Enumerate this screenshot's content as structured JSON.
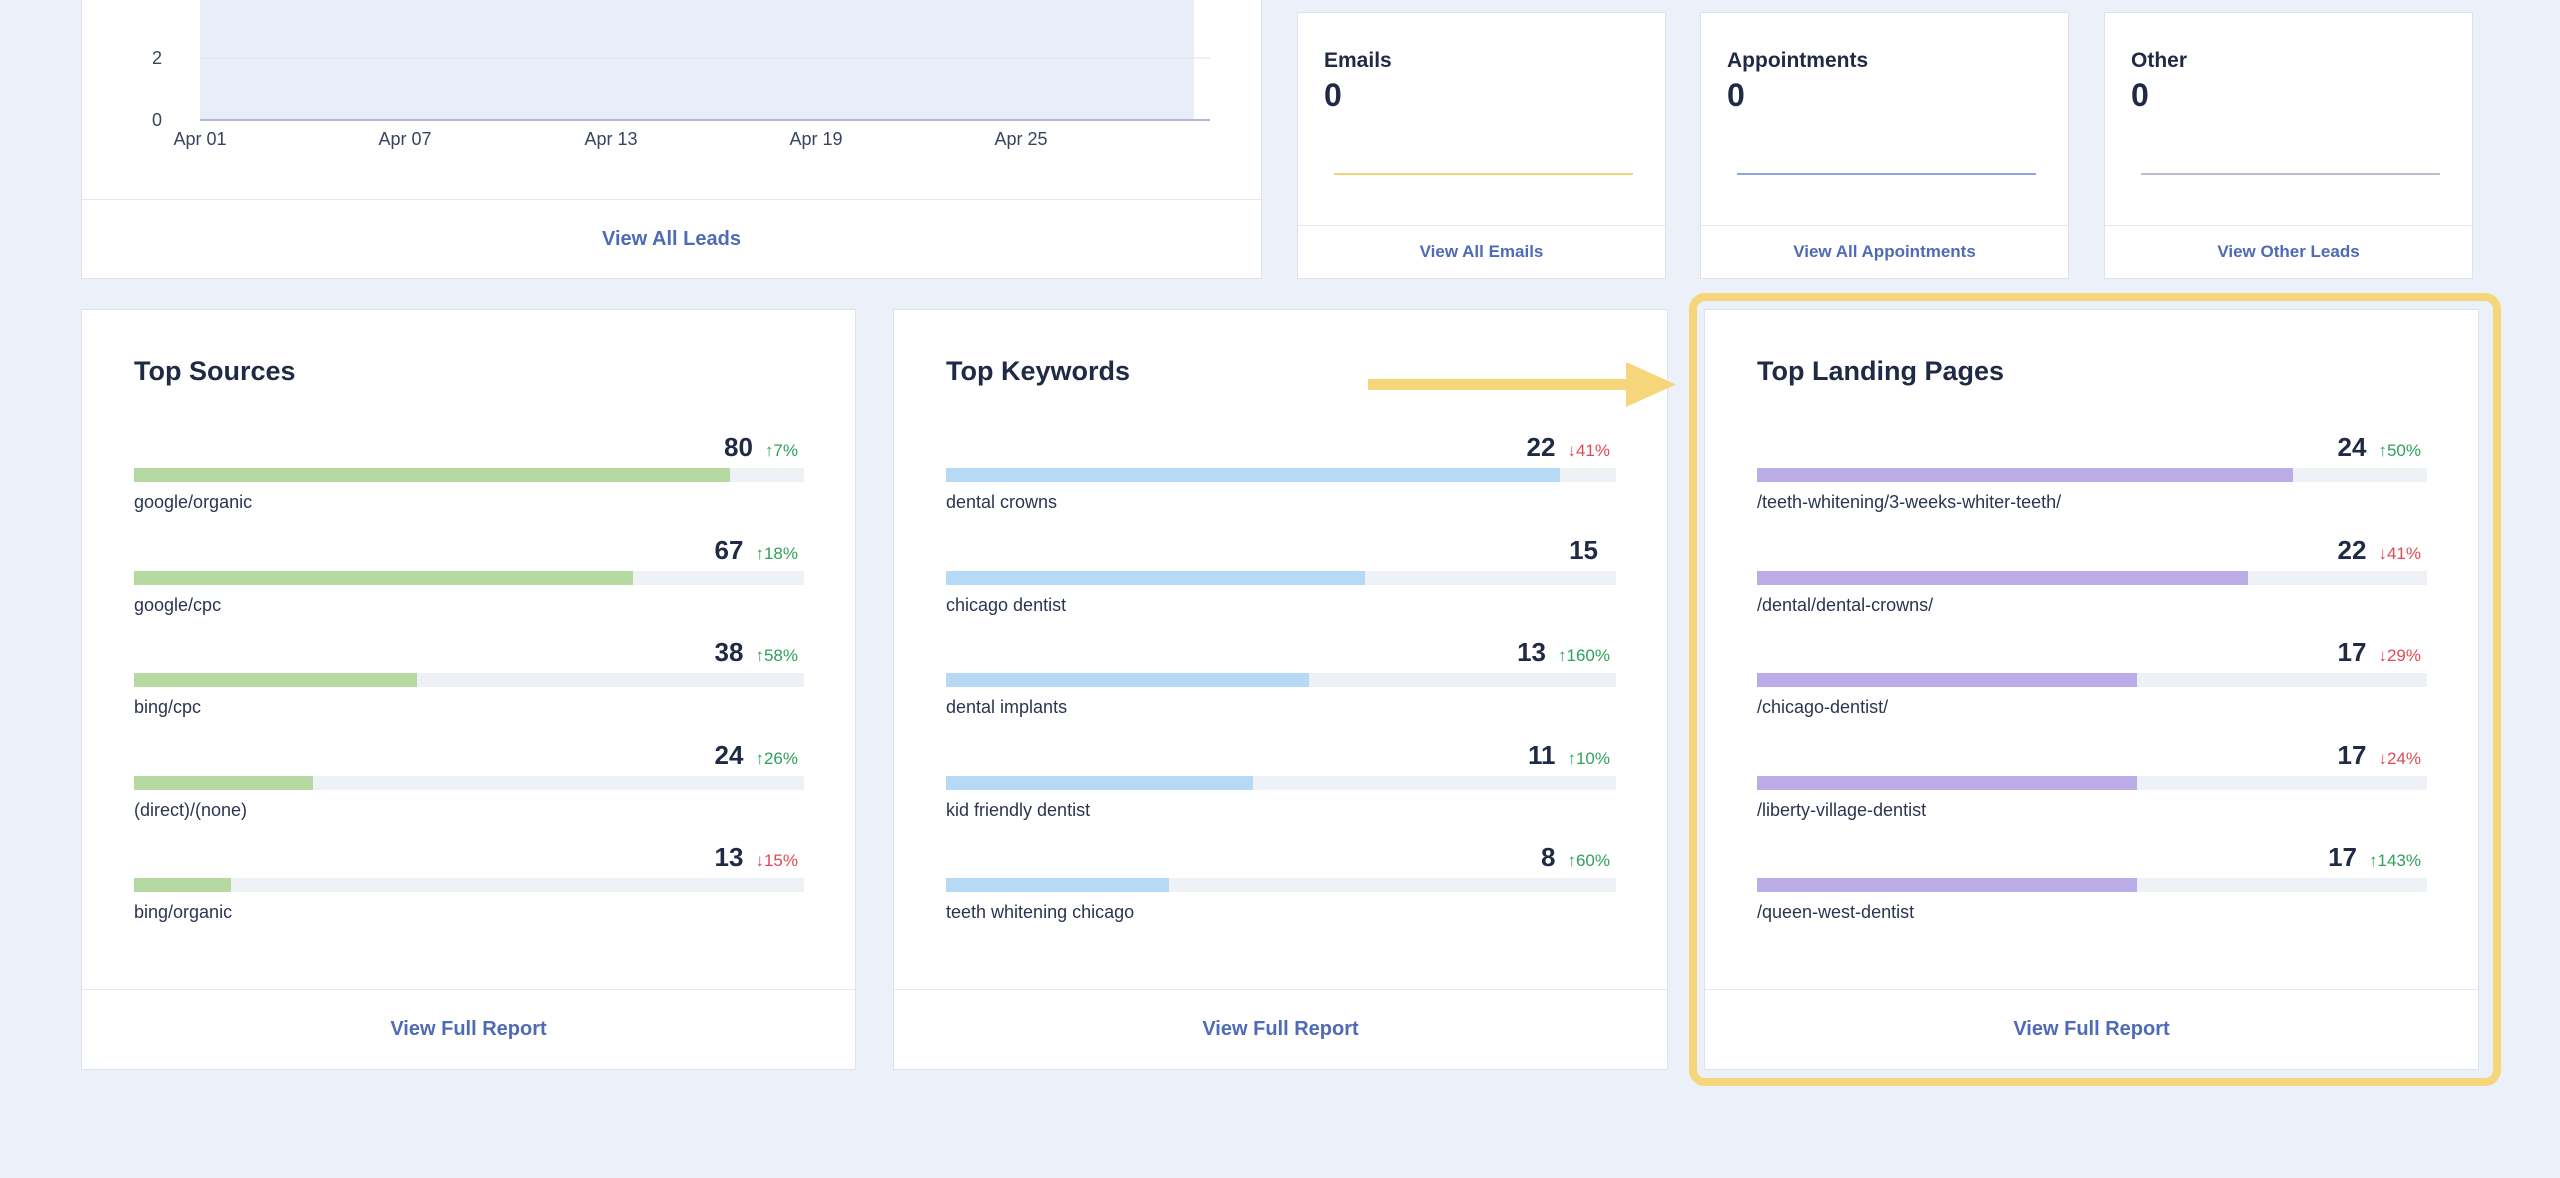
{
  "leads_chart": {
    "y_ticks": [
      "0",
      "2"
    ],
    "x_ticks": [
      "Apr 01",
      "Apr 07",
      "Apr 13",
      "Apr 19",
      "Apr 25"
    ],
    "footer_link": "View All Leads"
  },
  "mini_cards": [
    {
      "title": "Emails",
      "value": "0",
      "link": "View All Emails",
      "line_color": "#f6d27a"
    },
    {
      "title": "Appointments",
      "value": "0",
      "link": "View All Appointments",
      "line_color": "#8ea6dd"
    },
    {
      "title": "Other",
      "value": "0",
      "link": "View Other Leads",
      "line_color": "#b9bed0"
    }
  ],
  "top_sources": {
    "title": "Top Sources",
    "bar_color": "#b5d9a0",
    "max": 90,
    "rows": [
      {
        "label": "google/organic",
        "count": 80,
        "change": "↑7%",
        "dir": "up"
      },
      {
        "label": "google/cpc",
        "count": 67,
        "change": "↑18%",
        "dir": "up"
      },
      {
        "label": "bing/cpc",
        "count": 38,
        "change": "↑58%",
        "dir": "up"
      },
      {
        "label": "(direct)/(none)",
        "count": 24,
        "change": "↑26%",
        "dir": "up"
      },
      {
        "label": "bing/organic",
        "count": 13,
        "change": "↓15%",
        "dir": "down"
      }
    ],
    "footer_link": "View Full Report"
  },
  "top_keywords": {
    "title": "Top Keywords",
    "bar_color": "#b6daf6",
    "max": 24,
    "rows": [
      {
        "label": "dental crowns",
        "count": 22,
        "change": "↓41%",
        "dir": "down"
      },
      {
        "label": "chicago dentist",
        "count": 15,
        "change": "",
        "dir": ""
      },
      {
        "label": "dental implants",
        "count": 13,
        "change": "↑160%",
        "dir": "up"
      },
      {
        "label": "kid friendly dentist",
        "count": 11,
        "change": "↑10%",
        "dir": "up"
      },
      {
        "label": "teeth whitening chicago",
        "count": 8,
        "change": "↑60%",
        "dir": "up"
      }
    ],
    "footer_link": "View Full Report"
  },
  "top_landing_pages": {
    "title": "Top Landing Pages",
    "bar_color": "#bbace8",
    "max": 30,
    "rows": [
      {
        "label": "/teeth-whitening/3-weeks-whiter-teeth/",
        "count": 24,
        "change": "↑50%",
        "dir": "up"
      },
      {
        "label": "/dental/dental-crowns/",
        "count": 22,
        "change": "↓41%",
        "dir": "down"
      },
      {
        "label": "/chicago-dentist/",
        "count": 17,
        "change": "↓29%",
        "dir": "down"
      },
      {
        "label": "/liberty-village-dentist",
        "count": 17,
        "change": "↓24%",
        "dir": "down"
      },
      {
        "label": "/queen-west-dentist",
        "count": 17,
        "change": "↑143%",
        "dir": "up"
      }
    ],
    "footer_link": "View Full Report"
  },
  "highlight_color": "#f5d67b"
}
